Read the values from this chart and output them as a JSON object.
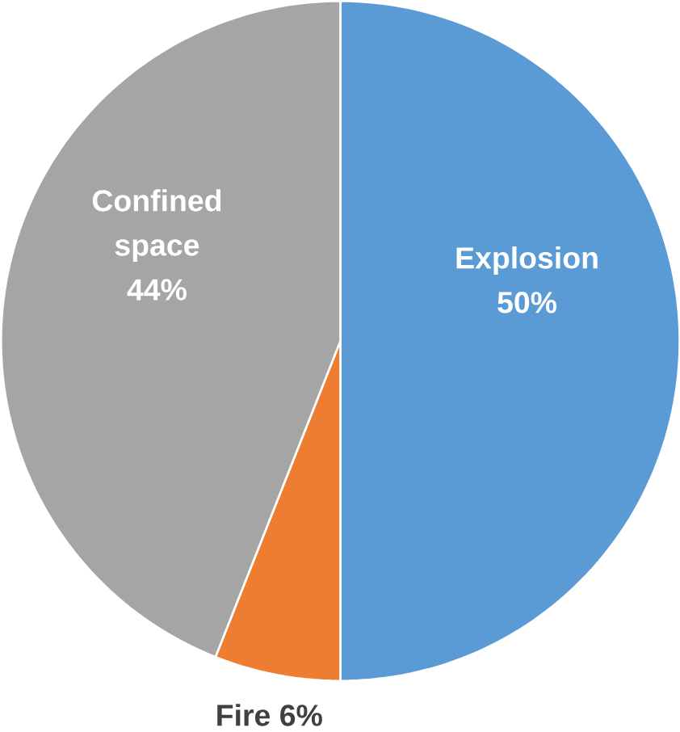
{
  "chart_data": {
    "type": "pie",
    "categories": [
      "Explosion",
      "Fire",
      "Confined space"
    ],
    "values": [
      50,
      6,
      44
    ],
    "colors": [
      "#5b9bd5",
      "#ed7d31",
      "#a5a5a5"
    ],
    "value_labels": [
      "50%",
      "6%",
      "44%"
    ]
  }
}
